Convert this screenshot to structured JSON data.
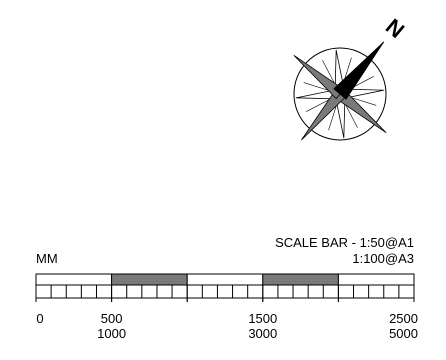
{
  "north_arrow": {
    "label": "N"
  },
  "scale_bar": {
    "title": "SCALE BAR - 1:50@A1",
    "subtitle": "1:100@A3",
    "unit": "MM",
    "ticks": [
      {
        "primary": "0",
        "secondary": ""
      },
      {
        "primary": "500",
        "secondary": "1000"
      },
      {
        "primary": "1500",
        "secondary": "3000"
      },
      {
        "primary": "2500",
        "secondary": "5000"
      }
    ],
    "segments": [
      {
        "from": 0,
        "to": 500,
        "filled": false
      },
      {
        "from": 500,
        "to": 1000,
        "filled": true
      },
      {
        "from": 1000,
        "to": 1500,
        "filled": false
      },
      {
        "from": 1500,
        "to": 2000,
        "filled": true
      },
      {
        "from": 2000,
        "to": 2500,
        "filled": false
      }
    ],
    "range": [
      0,
      2500
    ],
    "minor_divisions_per_segment": 5
  },
  "colors": {
    "fill_dark": "#7a7a7a",
    "stroke": "#000000",
    "background": "#ffffff"
  }
}
